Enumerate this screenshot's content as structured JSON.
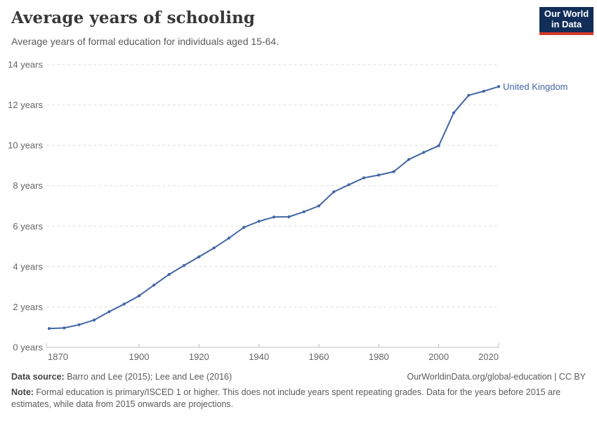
{
  "header": {
    "title": "Average years of schooling",
    "subtitle": "Average years of formal education for individuals aged 15-64.",
    "logo": {
      "line1": "Our World",
      "line2": "in Data"
    }
  },
  "chart_data": {
    "type": "line",
    "title": "Average years of schooling",
    "xlabel": "",
    "ylabel": "",
    "xlim": [
      1870,
      2020
    ],
    "ylim": [
      0,
      14
    ],
    "grid": "horizontal-dashed",
    "legend_position": "end-of-line-label",
    "x_ticks": [
      {
        "value": 1870,
        "label": "1870"
      },
      {
        "value": 1900,
        "label": "1900"
      },
      {
        "value": 1920,
        "label": "1920"
      },
      {
        "value": 1940,
        "label": "1940"
      },
      {
        "value": 1960,
        "label": "1960"
      },
      {
        "value": 1980,
        "label": "1980"
      },
      {
        "value": 2000,
        "label": "2000"
      },
      {
        "value": 2020,
        "label": "2020"
      }
    ],
    "y_ticks": [
      {
        "value": 0,
        "label": "0 years"
      },
      {
        "value": 2,
        "label": "2 years"
      },
      {
        "value": 4,
        "label": "4 years"
      },
      {
        "value": 6,
        "label": "6 years"
      },
      {
        "value": 8,
        "label": "8 years"
      },
      {
        "value": 10,
        "label": "10 years"
      },
      {
        "value": 12,
        "label": "12 years"
      },
      {
        "value": 14,
        "label": "14 years"
      }
    ],
    "series": [
      {
        "name": "United Kingdom",
        "color": "#4266a5",
        "x": [
          1870,
          1875,
          1880,
          1885,
          1890,
          1895,
          1900,
          1905,
          1910,
          1915,
          1920,
          1925,
          1930,
          1935,
          1940,
          1945,
          1950,
          1955,
          1960,
          1965,
          1970,
          1975,
          1980,
          1985,
          1990,
          1995,
          2000,
          2005,
          2010,
          2015,
          2020
        ],
        "values": [
          0.93,
          0.96,
          1.12,
          1.35,
          1.76,
          2.14,
          2.55,
          3.08,
          3.61,
          4.05,
          4.48,
          4.92,
          5.41,
          5.94,
          6.24,
          6.45,
          6.46,
          6.71,
          7.0,
          7.7,
          8.05,
          8.39,
          8.53,
          8.7,
          9.3,
          9.65,
          9.98,
          11.61,
          12.48,
          12.68,
          12.91
        ]
      }
    ]
  },
  "footer": {
    "source_label": "Data source:",
    "source_text": " Barro and Lee (2015); Lee and Lee (2016)",
    "credit": "OurWorldinData.org/global-education | CC BY",
    "note_label": "Note:",
    "note_text": " Formal education is primary/ISCED 1 or higher. This does not include years spent repeating grades. Data for the years before 2015 are estimates, while data from 2015 onwards are projections."
  },
  "colors": {
    "line": "#4266a5",
    "axis": "#bdbdbd",
    "grid": "#dedede",
    "tick_text": "#666666",
    "logo_bg": "#112e59",
    "logo_red": "#d23b27"
  }
}
